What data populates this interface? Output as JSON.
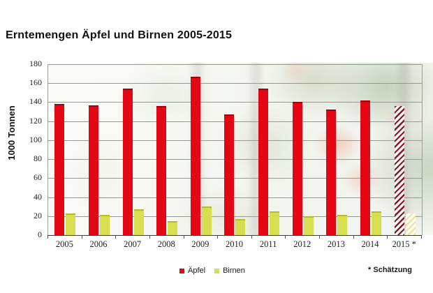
{
  "chart_data": {
    "type": "bar",
    "title": "Erntemengen Äpfel und Birnen 2005-2015",
    "ylabel": "1000 Tonnen",
    "ylim": [
      0,
      180
    ],
    "yticks": [
      0,
      20,
      40,
      60,
      80,
      100,
      120,
      140,
      160,
      180
    ],
    "grid": true,
    "categories": [
      "2005",
      "2006",
      "2007",
      "2008",
      "2009",
      "2010",
      "2011",
      "2012",
      "2013",
      "2014",
      "2015 *"
    ],
    "series": [
      {
        "name": "Äpfel",
        "values": [
          138,
          137,
          154,
          136,
          167,
          127,
          154,
          140,
          132,
          142,
          136
        ],
        "color": "#e30613",
        "edge_color": "#9c0310",
        "hatch_stripe": "#8d1523",
        "hatch_bg": "#fdfbfa"
      },
      {
        "name": "Birnen",
        "values": [
          23,
          21,
          27,
          15,
          30,
          17,
          25,
          20,
          21,
          25,
          23
        ],
        "color": "#d7de4f",
        "edge_color": "#b2ba30",
        "hatch_stripe": "#e6e79c",
        "hatch_bg": "#fffef2"
      }
    ],
    "hatched_category": "2015 *",
    "hatched_note": "2015 bars drawn with diagonal hatching (estimate)",
    "legend_position": "bottom-center",
    "footnote": "* Schätzung",
    "background": "washed-out orchard photo behind plot area"
  }
}
